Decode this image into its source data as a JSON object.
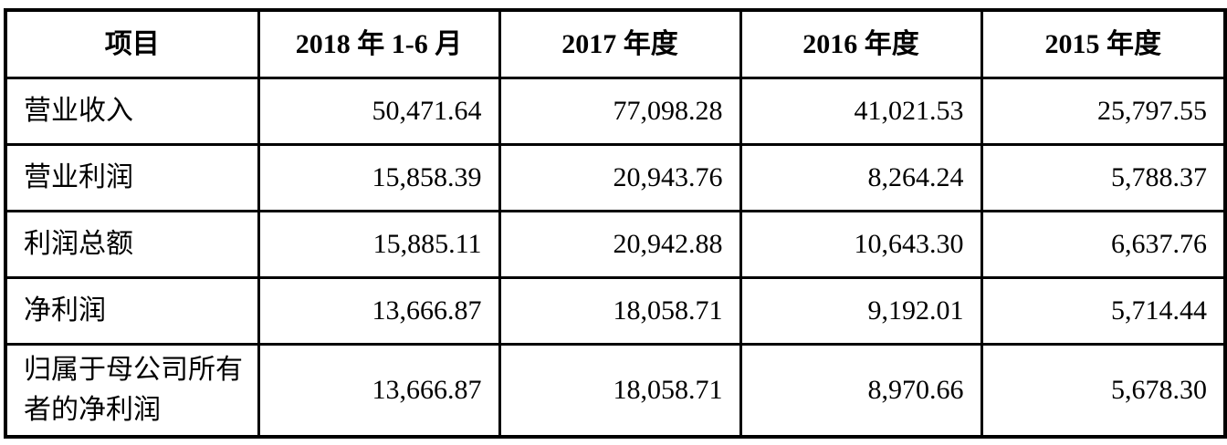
{
  "table": {
    "headers": [
      "项目",
      "2018 年 1-6 月",
      "2017 年度",
      "2016 年度",
      "2015 年度"
    ],
    "rows": [
      {
        "label": "营业收入",
        "values": [
          "50,471.64",
          "77,098.28",
          "41,021.53",
          "25,797.55"
        ]
      },
      {
        "label": "营业利润",
        "values": [
          "15,858.39",
          "20,943.76",
          "8,264.24",
          "5,788.37"
        ]
      },
      {
        "label": "利润总额",
        "values": [
          "15,885.11",
          "20,942.88",
          "10,643.30",
          "6,637.76"
        ]
      },
      {
        "label": "净利润",
        "values": [
          "13,666.87",
          "18,058.71",
          "9,192.01",
          "5,714.44"
        ]
      },
      {
        "label": "归属于母公司所有者的净利润",
        "values": [
          "13,666.87",
          "18,058.71",
          "8,970.66",
          "5,678.30"
        ]
      }
    ]
  }
}
